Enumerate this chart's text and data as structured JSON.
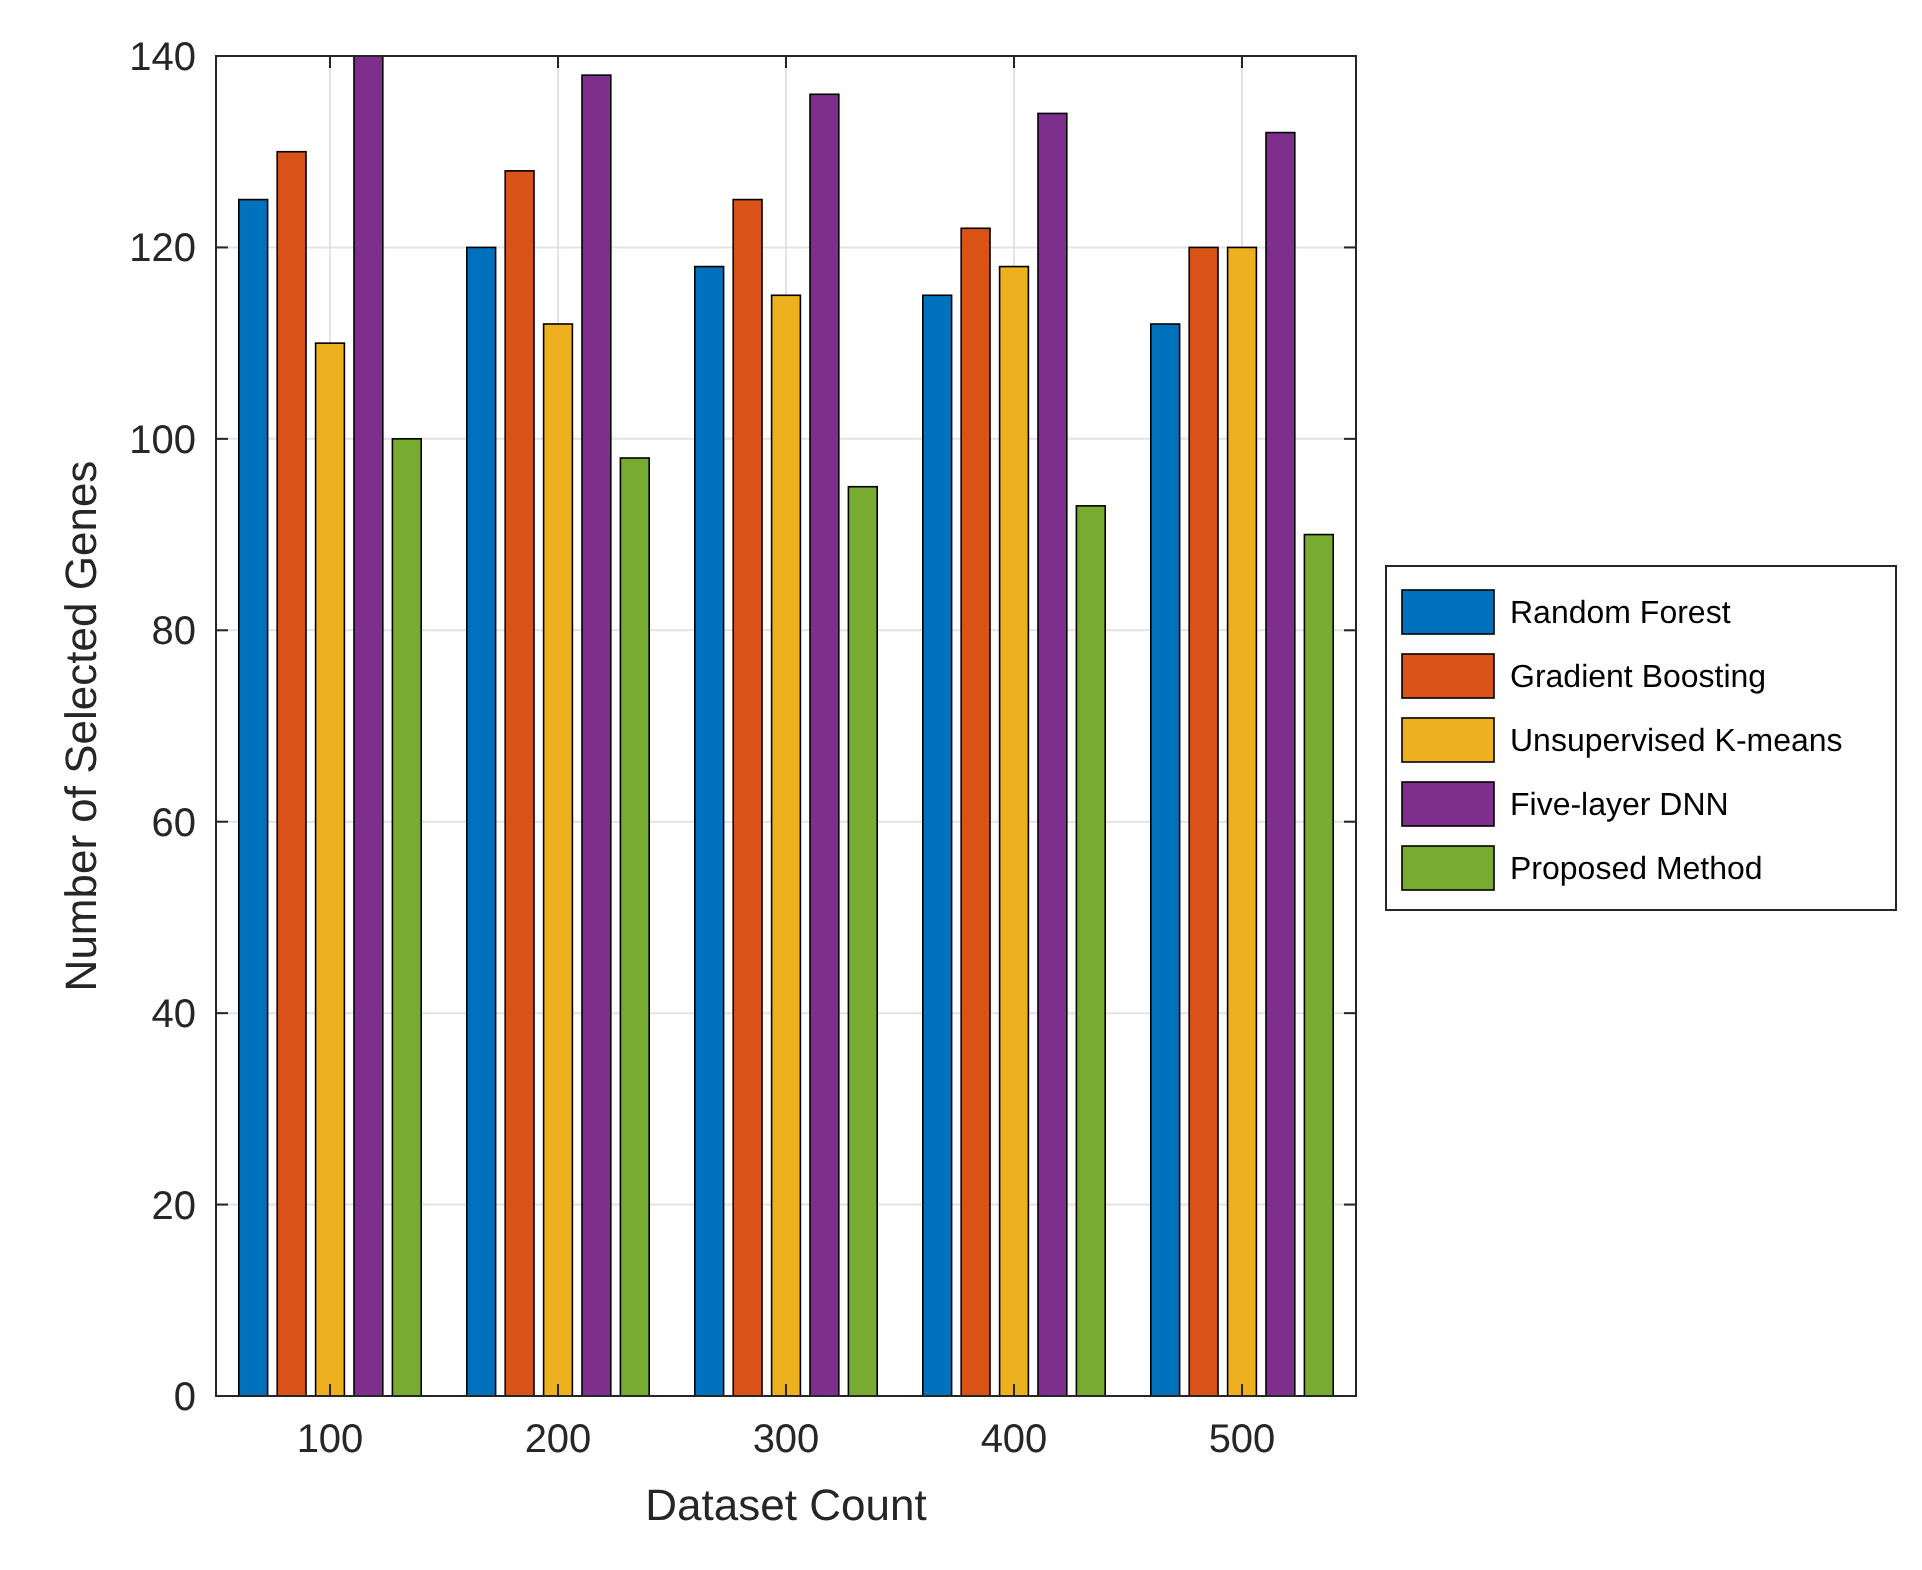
{
  "chart_data": {
    "type": "bar",
    "xlabel": "Dataset Count",
    "ylabel": "Number of Selected Genes",
    "categories": [
      "100",
      "200",
      "300",
      "400",
      "500"
    ],
    "series": [
      {
        "name": "Random Forest",
        "color": "#0072bd",
        "values": [
          125,
          120,
          118,
          115,
          112
        ]
      },
      {
        "name": "Gradient Boosting",
        "color": "#d95319",
        "values": [
          130,
          128,
          125,
          122,
          120
        ]
      },
      {
        "name": "Unsupervised K-means",
        "color": "#edb120",
        "values": [
          110,
          112,
          115,
          118,
          120
        ]
      },
      {
        "name": "Five-layer DNN",
        "color": "#7e2f8e",
        "values": [
          140,
          138,
          136,
          134,
          132
        ]
      },
      {
        "name": "Proposed Method",
        "color": "#77ac30",
        "values": [
          100,
          98,
          95,
          93,
          90
        ]
      }
    ],
    "ylim": [
      0,
      140
    ],
    "yticks": [
      0,
      20,
      40,
      60,
      80,
      100,
      120,
      140
    ],
    "grid": true,
    "legend": "right"
  }
}
